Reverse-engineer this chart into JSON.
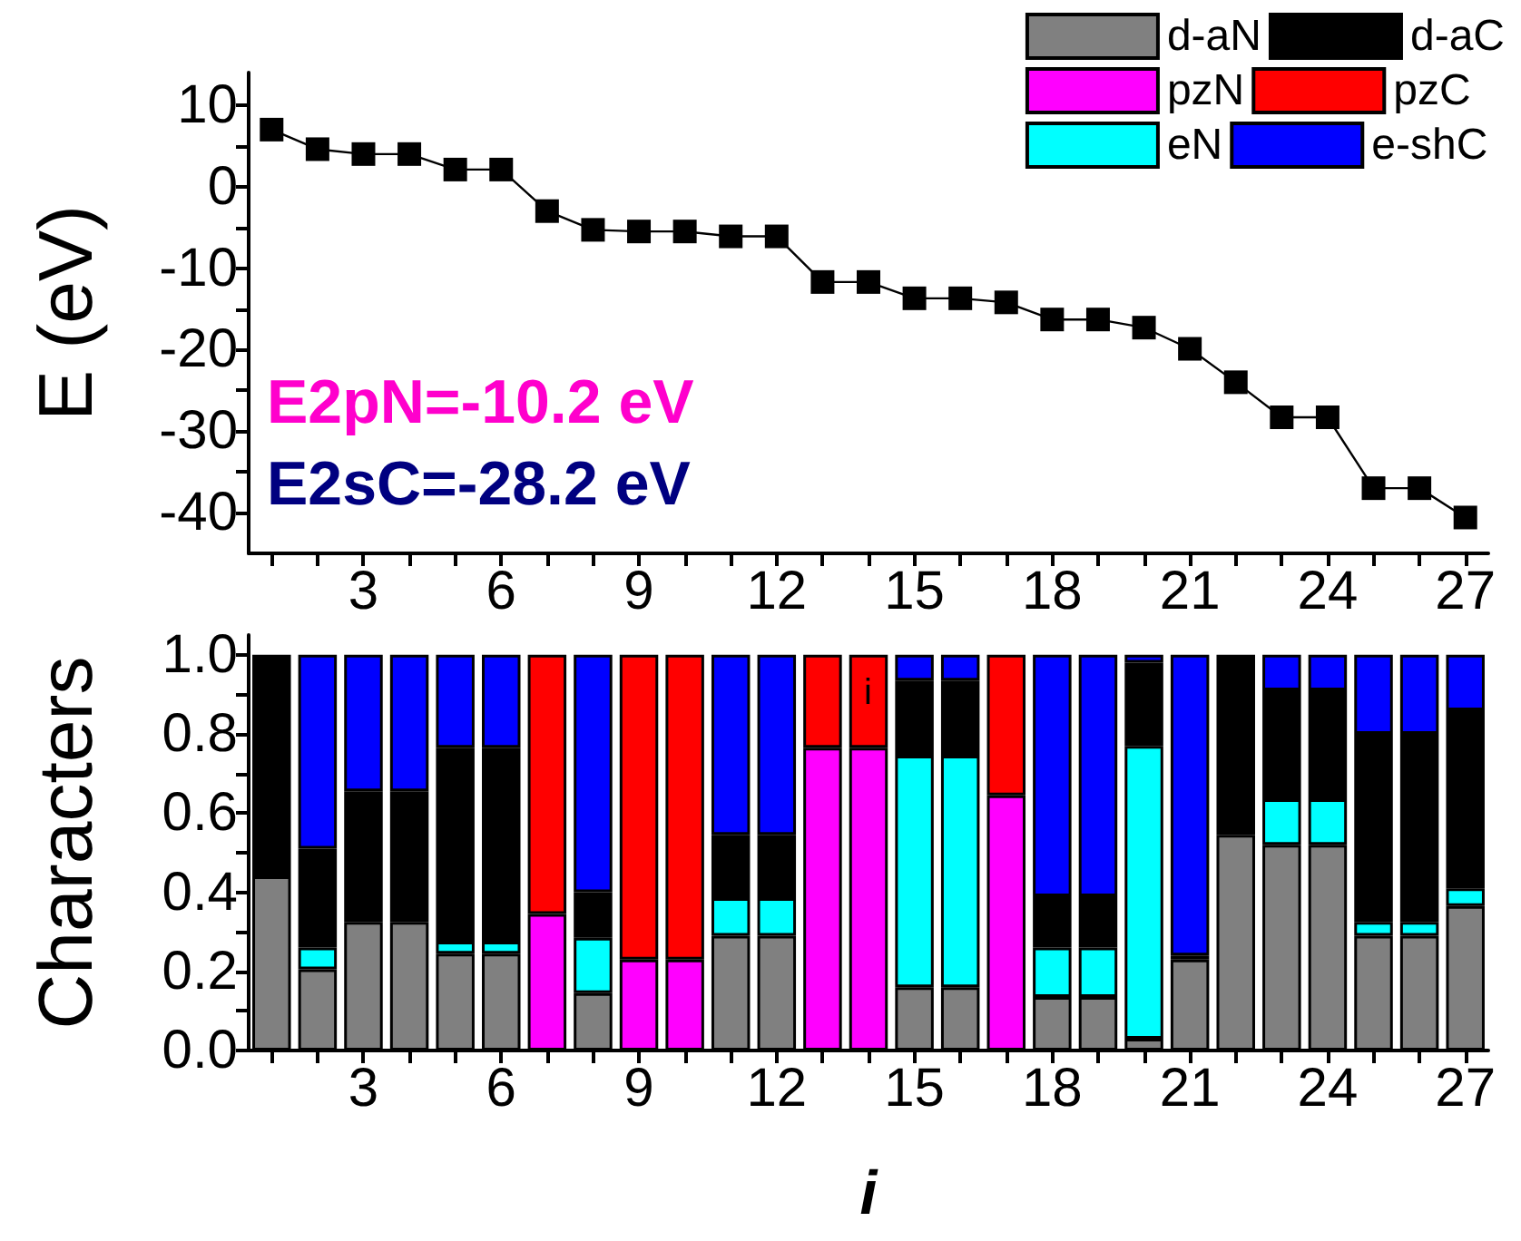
{
  "chart_data": [
    {
      "type": "line",
      "ylabel": "E (eV)",
      "x": [
        1,
        2,
        3,
        4,
        5,
        6,
        7,
        8,
        9,
        10,
        11,
        12,
        13,
        14,
        15,
        16,
        17,
        18,
        19,
        20,
        21,
        22,
        23,
        24,
        25,
        26,
        27
      ],
      "series": [
        {
          "color": "#000000",
          "values": [
            7.0,
            4.6,
            4.0,
            4.0,
            2.1,
            2.1,
            -3.0,
            -5.3,
            -5.5,
            -5.5,
            -6.1,
            -6.1,
            -11.7,
            -11.7,
            -13.7,
            -13.7,
            -14.2,
            -16.3,
            -16.3,
            -17.3,
            -19.9,
            -24.0,
            -28.3,
            -28.3,
            -37.0,
            -37.0,
            -40.6
          ]
        }
      ],
      "xlim": [
        0.5,
        27.5
      ],
      "xticks": [
        {
          "value": 1,
          "label": null
        },
        {
          "value": 2,
          "label": null
        },
        3,
        {
          "value": 4,
          "label": null
        },
        {
          "value": 5,
          "label": null
        },
        6,
        {
          "value": 7,
          "label": null
        },
        {
          "value": 8,
          "label": null
        },
        9,
        {
          "value": 10,
          "label": null
        },
        {
          "value": 11,
          "label": null
        },
        12,
        {
          "value": 13,
          "label": null
        },
        {
          "value": 14,
          "label": null
        },
        15,
        {
          "value": 16,
          "label": null
        },
        {
          "value": 17,
          "label": null
        },
        18,
        {
          "value": 19,
          "label": null
        },
        {
          "value": 20,
          "label": null
        },
        21,
        {
          "value": 22,
          "label": null
        },
        {
          "value": 23,
          "label": null
        },
        24,
        {
          "value": 25,
          "label": null
        },
        {
          "value": 26,
          "label": null
        },
        27
      ],
      "ylim": [
        -45,
        14
      ],
      "yticks": [
        -40,
        {
          "value": -35,
          "label": null
        },
        -30,
        {
          "value": -25,
          "label": null
        },
        -20,
        {
          "value": -15,
          "label": null
        },
        -10,
        {
          "value": -5,
          "label": null
        },
        0,
        {
          "value": 5,
          "label": null
        },
        10
      ],
      "marker": "square",
      "line_style": "solid",
      "grid": false,
      "annotations": [
        "E2pN=-10.2 eV",
        "E2sC=-28.2 eV"
      ]
    },
    {
      "type": "bar",
      "stacked": true,
      "ylabel": "Characters",
      "xlabel": "i",
      "x": [
        1,
        2,
        3,
        4,
        5,
        6,
        7,
        8,
        9,
        10,
        11,
        12,
        13,
        14,
        15,
        16,
        17,
        18,
        19,
        20,
        21,
        22,
        23,
        24,
        25,
        26,
        27
      ],
      "series": [
        {
          "name": "d-aN",
          "color": "#808080",
          "values": [
            0.44,
            0.205,
            0.325,
            0.325,
            0.245,
            0.245,
            null,
            0.145,
            null,
            null,
            0.29,
            0.29,
            null,
            null,
            0.16,
            0.16,
            null,
            0.135,
            0.135,
            0.03,
            0.23,
            0.545,
            0.52,
            0.52,
            0.29,
            0.29,
            0.365
          ]
        },
        {
          "name": "pzN",
          "color": "#ff00ff",
          "values": [
            null,
            null,
            null,
            null,
            null,
            null,
            0.345,
            null,
            0.23,
            0.23,
            null,
            null,
            0.765,
            0.765,
            null,
            null,
            0.645,
            null,
            null,
            null,
            null,
            null,
            null,
            null,
            null,
            null,
            null
          ]
        },
        {
          "name": "eN",
          "color": "#00ffff",
          "values": [
            null,
            0.055,
            null,
            null,
            0.03,
            0.03,
            null,
            0.14,
            null,
            null,
            0.095,
            0.095,
            null,
            null,
            0.585,
            0.585,
            null,
            0.125,
            0.125,
            0.74,
            null,
            null,
            0.115,
            0.115,
            0.035,
            0.035,
            0.045
          ]
        },
        {
          "name": "d-aC",
          "color": "#000000",
          "values": [
            0.56,
            0.25,
            0.33,
            0.33,
            0.49,
            0.49,
            null,
            0.115,
            null,
            null,
            0.16,
            0.16,
            null,
            null,
            0.19,
            0.19,
            null,
            0.13,
            0.13,
            0.21,
            0.01,
            0.455,
            0.275,
            0.275,
            0.475,
            0.475,
            0.45
          ]
        },
        {
          "name": "pzC",
          "color": "#ff0000",
          "values": [
            null,
            null,
            null,
            null,
            null,
            null,
            0.655,
            null,
            0.77,
            0.77,
            null,
            null,
            0.235,
            0.235,
            null,
            null,
            0.355,
            null,
            null,
            null,
            null,
            null,
            null,
            null,
            null,
            null,
            null
          ]
        },
        {
          "name": "e-shC",
          "color": "#0000ff",
          "values": [
            null,
            0.49,
            0.345,
            0.345,
            0.235,
            0.235,
            null,
            0.6,
            null,
            null,
            0.455,
            0.455,
            null,
            null,
            0.065,
            0.065,
            null,
            0.61,
            0.61,
            0.02,
            0.76,
            null,
            0.09,
            0.09,
            0.2,
            0.2,
            0.14
          ]
        }
      ],
      "xlim": [
        0.5,
        27.5
      ],
      "xticks": [
        {
          "value": 1,
          "label": null
        },
        {
          "value": 2,
          "label": null
        },
        3,
        {
          "value": 4,
          "label": null
        },
        {
          "value": 5,
          "label": null
        },
        6,
        {
          "value": 7,
          "label": null
        },
        {
          "value": 8,
          "label": null
        },
        9,
        {
          "value": 10,
          "label": null
        },
        {
          "value": 11,
          "label": null
        },
        12,
        {
          "value": 13,
          "label": null
        },
        {
          "value": 14,
          "label": null
        },
        15,
        {
          "value": 16,
          "label": null
        },
        {
          "value": 17,
          "label": null
        },
        18,
        {
          "value": 19,
          "label": null
        },
        {
          "value": 20,
          "label": null
        },
        21,
        {
          "value": 22,
          "label": null
        },
        {
          "value": 23,
          "label": null
        },
        24,
        {
          "value": 25,
          "label": null
        },
        {
          "value": 26,
          "label": null
        },
        27
      ],
      "ylim": [
        0,
        1.05
      ],
      "yticks": [
        {
          "value": 0,
          "label": "0.0"
        },
        {
          "value": 0.1,
          "label": null
        },
        0.2,
        {
          "value": 0.3,
          "label": null
        },
        0.4,
        {
          "value": 0.5,
          "label": null
        },
        0.6,
        {
          "value": 0.7,
          "label": null
        },
        0.8,
        {
          "value": 0.9,
          "label": null
        },
        {
          "value": 1,
          "label": "1.0"
        }
      ],
      "legend": "top right",
      "grid": false,
      "annotations": [
        "i"
      ]
    }
  ]
}
